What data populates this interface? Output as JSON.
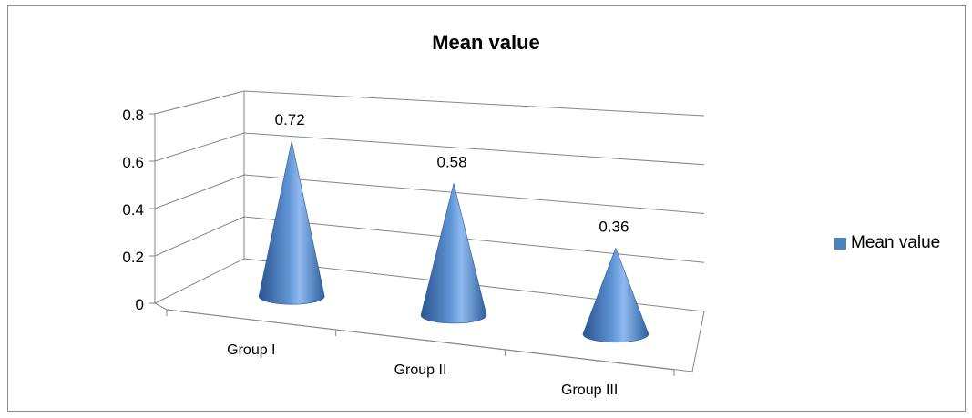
{
  "chart_data": {
    "type": "bar",
    "title": "Mean value",
    "categories": [
      "Group I",
      "Group II",
      "Group III"
    ],
    "series": [
      {
        "name": "Mean value",
        "values": [
          0.72,
          0.58,
          0.36
        ]
      }
    ],
    "data_labels": [
      "0.72",
      "0.58",
      "0.36"
    ],
    "ylim": [
      0,
      0.8
    ],
    "yticks": [
      0,
      0.2,
      0.4,
      0.6,
      0.8
    ],
    "ytick_labels": [
      "0",
      "0.2",
      "0.4",
      "0.6",
      "0.8"
    ],
    "xlabel": "",
    "ylabel": "",
    "grid": true,
    "legend_position": "right",
    "bar_shape": "cone",
    "colors": {
      "series": "#4f81bd",
      "grid": "#868686"
    }
  }
}
